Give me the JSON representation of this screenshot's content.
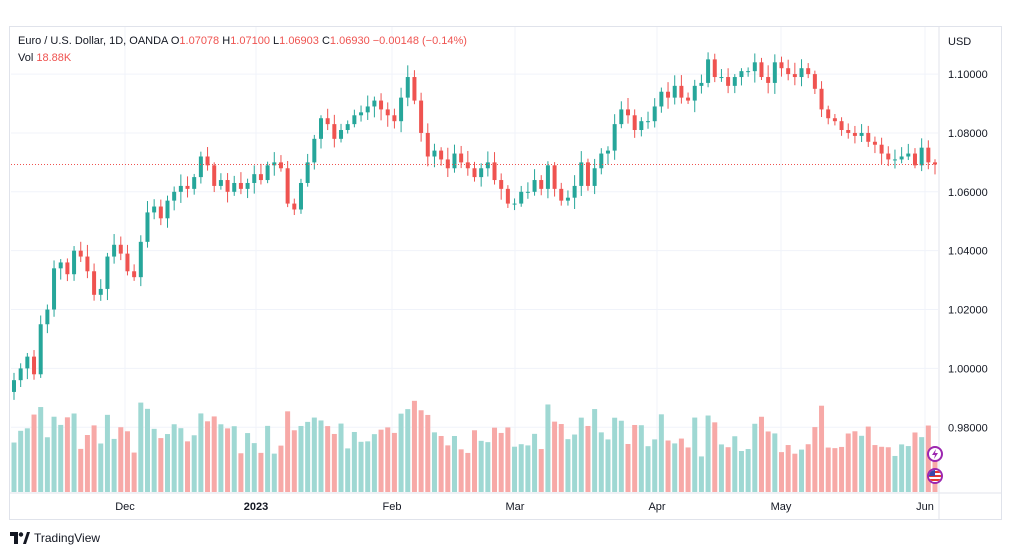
{
  "legend": {
    "symbol": "Euro / U.S. Dollar, 1D, OANDA",
    "o_label": "O",
    "o_value": "1.07078",
    "h_label": "H",
    "h_value": "1.07100",
    "l_label": "L",
    "l_value": "1.06903",
    "c_label": "C",
    "c_value": "1.06930",
    "change": "−0.00148 (−0.14%)",
    "vol_label": "Vol",
    "vol_value": "18.88K"
  },
  "footer": {
    "brand": "TradingView"
  },
  "colors": {
    "up": "#26a69a",
    "down": "#ef5350",
    "vol_up": "#9fd8d3",
    "vol_down": "#f7a9a7",
    "grid": "#f0f3fa"
  },
  "chart_data": {
    "type": "candlestick",
    "currency": "USD",
    "ylim": [
      0.958,
      1.116
    ],
    "y_ticks": [
      "1.10000",
      "1.08000",
      "1.06000",
      "1.04000",
      "1.02000",
      "1.00000",
      "0.98000"
    ],
    "x_tick_labels": [
      "Dec",
      "2023",
      "Feb",
      "Mar",
      "Apr",
      "May",
      "Jun"
    ],
    "last_price": 1.0693,
    "grid": true,
    "candles_close": [
      0.996,
      1.0,
      1.004,
      0.998,
      1.015,
      1.02,
      1.034,
      1.036,
      1.032,
      1.04,
      1.038,
      1.033,
      1.025,
      1.027,
      1.038,
      1.042,
      1.039,
      1.033,
      1.031,
      1.043,
      1.053,
      1.055,
      1.051,
      1.057,
      1.06,
      1.062,
      1.061,
      1.065,
      1.072,
      1.069,
      1.062,
      1.064,
      1.06,
      1.063,
      1.061,
      1.063,
      1.066,
      1.064,
      1.069,
      1.07,
      1.068,
      1.056,
      1.054,
      1.063,
      1.07,
      1.078,
      1.085,
      1.083,
      1.078,
      1.081,
      1.083,
      1.086,
      1.087,
      1.089,
      1.091,
      1.088,
      1.086,
      1.084,
      1.092,
      1.099,
      1.091,
      1.08,
      1.072,
      1.074,
      1.071,
      1.068,
      1.073,
      1.07,
      1.068,
      1.065,
      1.068,
      1.07,
      1.064,
      1.061,
      1.056,
      1.056,
      1.06,
      1.06,
      1.064,
      1.061,
      1.069,
      1.061,
      1.057,
      1.058,
      1.062,
      1.07,
      1.062,
      1.068,
      1.073,
      1.074,
      1.083,
      1.088,
      1.086,
      1.081,
      1.084,
      1.084,
      1.089,
      1.094,
      1.092,
      1.096,
      1.092,
      1.091,
      1.096,
      1.097,
      1.105,
      1.099,
      1.099,
      1.096,
      1.099,
      1.101,
      1.101,
      1.104,
      1.099,
      1.097,
      1.104,
      1.102,
      1.1,
      1.099,
      1.102,
      1.1,
      1.095,
      1.088,
      1.085,
      1.084,
      1.081,
      1.08,
      1.079,
      1.08,
      1.077,
      1.076,
      1.073,
      1.071,
      1.071,
      1.072,
      1.073,
      1.069,
      1.075,
      1.07,
      1.0693
    ]
  }
}
